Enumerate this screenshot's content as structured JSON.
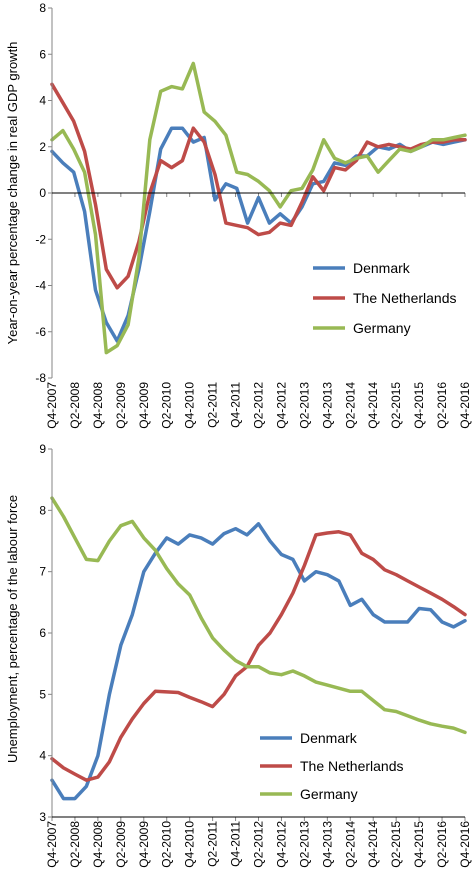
{
  "chart_data": [
    {
      "type": "line",
      "title": "",
      "xlabel": "",
      "ylabel": "Year-on-year percentage change in real GDP growth",
      "ylim": [
        -8,
        8
      ],
      "yticks": [
        "8",
        "6",
        "4",
        "2",
        "0",
        "-2",
        "-4",
        "-6",
        "-8"
      ],
      "x_tick_labels": [
        "Q4-2007",
        "Q2-2008",
        "Q4-2008",
        "Q2-2009",
        "Q4-2009",
        "Q2-2010",
        "Q4-2010",
        "Q2-2011",
        "Q4-2011",
        "Q2-2012",
        "Q4-2012",
        "Q2-2013",
        "Q4-2013",
        "Q2-2014",
        "Q4-2014",
        "Q2-2015",
        "Q4-2015",
        "Q2-2016",
        "Q4-2016"
      ],
      "legend_position": "bottom-right",
      "series": [
        {
          "name": "Denmark",
          "color": "#4a7ebb",
          "values": [
            1.8,
            1.3,
            0.9,
            -0.8,
            -4.2,
            -5.6,
            -6.4,
            -5.3,
            -3.3,
            -0.8,
            1.9,
            2.8,
            2.8,
            2.2,
            2.4,
            -0.3,
            0.4,
            0.2,
            -1.3,
            -0.2,
            -1.3,
            -0.9,
            -1.3,
            -0.6,
            0.4,
            0.5,
            1.3,
            1.2,
            1.6,
            1.6,
            2.0,
            1.9,
            2.1,
            1.8,
            2.0,
            2.2,
            2.1,
            2.2,
            2.3
          ]
        },
        {
          "name": "The Netherlands",
          "color": "#be4b48",
          "values": [
            4.7,
            3.9,
            3.1,
            1.8,
            -0.5,
            -3.3,
            -4.1,
            -3.6,
            -2.1,
            0.0,
            1.4,
            1.1,
            1.4,
            2.8,
            2.2,
            0.8,
            -1.3,
            -1.4,
            -1.5,
            -1.8,
            -1.7,
            -1.3,
            -1.4,
            -0.4,
            0.7,
            0.1,
            1.1,
            1.0,
            1.4,
            2.2,
            2.0,
            2.1,
            2.0,
            1.9,
            2.1,
            2.2,
            2.2,
            2.3,
            2.3
          ]
        },
        {
          "name": "Germany",
          "color": "#98b954",
          "values": [
            2.3,
            2.7,
            1.9,
            0.9,
            -1.8,
            -6.9,
            -6.6,
            -5.7,
            -2.8,
            2.3,
            4.4,
            4.6,
            4.5,
            5.6,
            3.5,
            3.1,
            2.5,
            0.9,
            0.8,
            0.5,
            0.1,
            -0.6,
            0.1,
            0.2,
            1.0,
            2.3,
            1.5,
            1.3,
            1.5,
            1.6,
            0.9,
            1.4,
            1.9,
            1.8,
            2.0,
            2.3,
            2.3,
            2.4,
            2.5
          ]
        }
      ]
    },
    {
      "type": "line",
      "title": "",
      "xlabel": "",
      "ylabel": "Unemployment, percentage of the labour force",
      "ylim": [
        3,
        9
      ],
      "yticks": [
        "9",
        "8",
        "7",
        "6",
        "5",
        "4",
        "3"
      ],
      "x_tick_labels": [
        "Q4-2007",
        "Q2-2008",
        "Q4-2008",
        "Q2-2009",
        "Q4-2009",
        "Q2-2010",
        "Q4-2010",
        "Q2-2011",
        "Q4-2011",
        "Q2-2012",
        "Q4-2012",
        "Q2-2013",
        "Q4-2013",
        "Q2-2014",
        "Q4-2014",
        "Q2-2015",
        "Q4-2015",
        "Q2-2016",
        "Q4-2016"
      ],
      "legend_position": "bottom-right",
      "series": [
        {
          "name": "Denmark",
          "color": "#4a7ebb",
          "values": [
            3.6,
            3.3,
            3.3,
            3.5,
            4.0,
            5.0,
            5.8,
            6.3,
            7.0,
            7.3,
            7.55,
            7.45,
            7.6,
            7.55,
            7.45,
            7.62,
            7.7,
            7.6,
            7.78,
            7.5,
            7.28,
            7.2,
            6.85,
            7.0,
            6.95,
            6.85,
            6.45,
            6.55,
            6.3,
            6.18,
            6.18,
            6.18,
            6.4,
            6.38,
            6.18,
            6.1,
            6.2
          ]
        },
        {
          "name": "The Netherlands",
          "color": "#be4b48",
          "values": [
            3.95,
            3.8,
            3.7,
            3.6,
            3.65,
            3.9,
            4.3,
            4.6,
            4.85,
            5.05,
            5.04,
            5.03,
            4.95,
            4.88,
            4.8,
            5.0,
            5.3,
            5.45,
            5.8,
            6.0,
            6.3,
            6.65,
            7.1,
            7.6,
            7.63,
            7.65,
            7.6,
            7.3,
            7.2,
            7.03,
            6.95,
            6.85,
            6.75,
            6.65,
            6.55,
            6.43,
            6.3
          ]
        },
        {
          "name": "Germany",
          "color": "#98b954",
          "values": [
            8.2,
            7.9,
            7.55,
            7.2,
            7.18,
            7.5,
            7.75,
            7.82,
            7.55,
            7.35,
            7.05,
            6.8,
            6.62,
            6.25,
            5.92,
            5.72,
            5.55,
            5.45,
            5.45,
            5.35,
            5.32,
            5.38,
            5.3,
            5.2,
            5.15,
            5.1,
            5.05,
            5.05,
            4.9,
            4.75,
            4.72,
            4.65,
            4.58,
            4.52,
            4.48,
            4.45,
            4.38
          ]
        }
      ]
    }
  ]
}
